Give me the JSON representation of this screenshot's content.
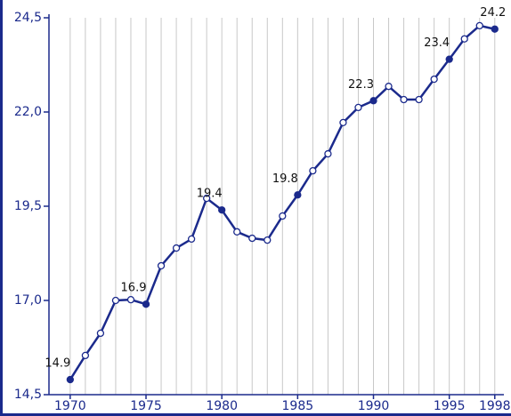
{
  "chart_data": {
    "type": "line",
    "x": [
      1970,
      1971,
      1972,
      1973,
      1974,
      1975,
      1976,
      1977,
      1978,
      1979,
      1980,
      1981,
      1982,
      1983,
      1984,
      1985,
      1986,
      1987,
      1988,
      1989,
      1990,
      1991,
      1992,
      1993,
      1994,
      1995,
      1996,
      1997,
      1998
    ],
    "values": [
      14.9,
      15.54,
      16.13,
      17.0,
      17.02,
      16.9,
      17.92,
      18.39,
      18.63,
      19.71,
      19.4,
      18.82,
      18.65,
      18.6,
      19.24,
      19.8,
      20.44,
      20.89,
      21.72,
      22.12,
      22.3,
      22.68,
      22.33,
      22.33,
      22.87,
      23.4,
      23.94,
      24.29,
      24.2
    ],
    "value_labels": [
      "14.9",
      null,
      null,
      null,
      null,
      "16.9",
      null,
      null,
      null,
      null,
      "19.4",
      null,
      null,
      null,
      null,
      "19.8",
      null,
      null,
      null,
      null,
      "22.3",
      null,
      null,
      null,
      null,
      "23.4",
      null,
      null,
      "24.2"
    ],
    "color": "#1b2a8c",
    "xlim": [
      1968.6,
      1998.6
    ],
    "xticks": [
      1970,
      1975,
      1980,
      1985,
      1990,
      1995,
      1998
    ],
    "ylim": [
      14.5,
      24.5
    ],
    "yticks": [
      {
        "value": 14.5,
        "label": "14,5"
      },
      {
        "value": 17.0,
        "label": "17,0"
      },
      {
        "value": 19.5,
        "label": "19,5"
      },
      {
        "value": 22.0,
        "label": "22,0"
      },
      {
        "value": 24.5,
        "label": "24,5"
      }
    ],
    "grid": true
  }
}
